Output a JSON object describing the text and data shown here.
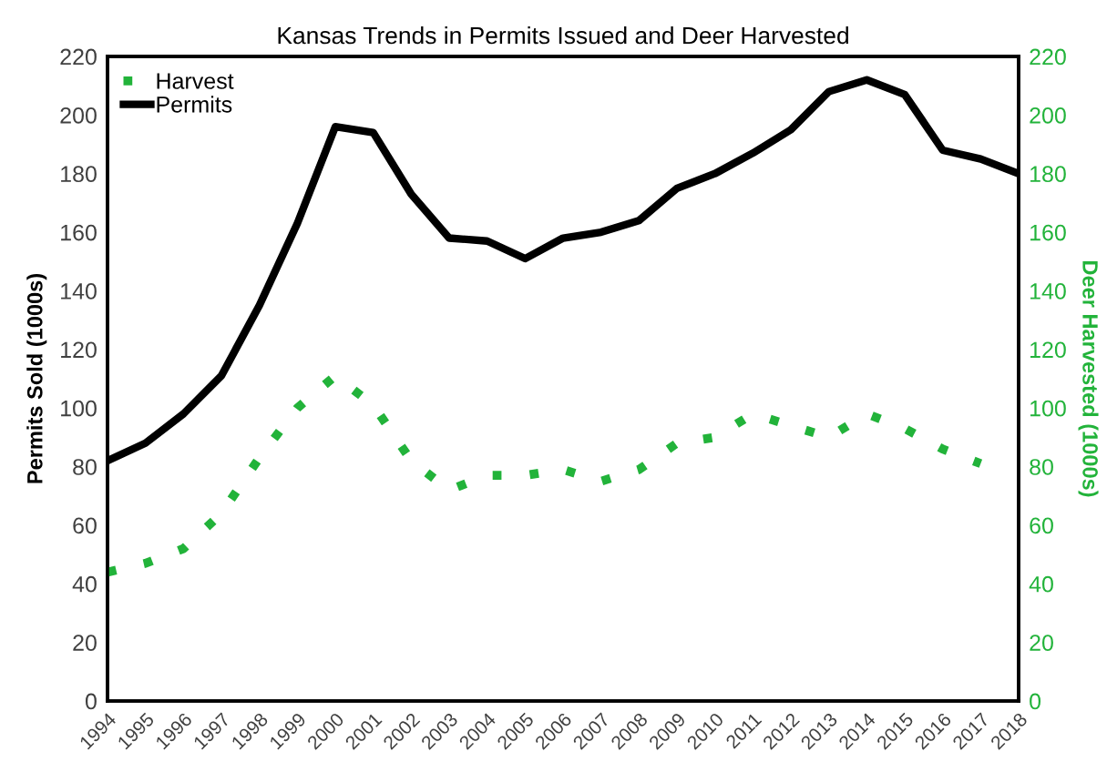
{
  "chart_data": {
    "type": "line",
    "title": "Kansas Trends in Permits Issued and Deer Harvested",
    "ylabel": "Permits Sold (1000s)",
    "y2label": "Deer Harvested (1000s)",
    "categories": [
      "1994",
      "1995",
      "1996",
      "1997",
      "1998",
      "1999",
      "2000",
      "2001",
      "2002",
      "2003",
      "2004",
      "2005",
      "2006",
      "2007",
      "2008",
      "2009",
      "2010",
      "2011",
      "2012",
      "2013",
      "2014",
      "2015",
      "2016",
      "2017",
      "2018"
    ],
    "series": [
      {
        "name": "Harvest",
        "color": "#22b33a",
        "axis": "y2",
        "line_style": "dotted",
        "values": [
          44,
          47,
          52,
          64,
          83,
          100,
          111,
          101,
          82,
          72,
          77,
          77,
          79,
          75,
          79,
          88,
          90,
          98,
          94,
          90,
          98,
          93,
          86,
          81,
          null
        ]
      },
      {
        "name": "Permits",
        "color": "#000000",
        "line_style": "solid",
        "values": [
          82,
          88,
          98,
          111,
          135,
          163,
          196,
          194,
          173,
          158,
          157,
          151,
          158,
          160,
          164,
          175,
          180,
          187,
          195,
          208,
          212,
          207,
          188,
          185,
          180
        ]
      }
    ],
    "ylim": [
      0,
      220
    ],
    "yticks": [
      0,
      20,
      40,
      60,
      80,
      100,
      120,
      140,
      160,
      180,
      200,
      220
    ],
    "y2lim": [
      0,
      220
    ],
    "y2ticks": [
      0,
      20,
      40,
      60,
      80,
      100,
      120,
      140,
      160,
      180,
      200,
      220
    ],
    "grid": false,
    "legend": "top left",
    "marker": "none"
  }
}
